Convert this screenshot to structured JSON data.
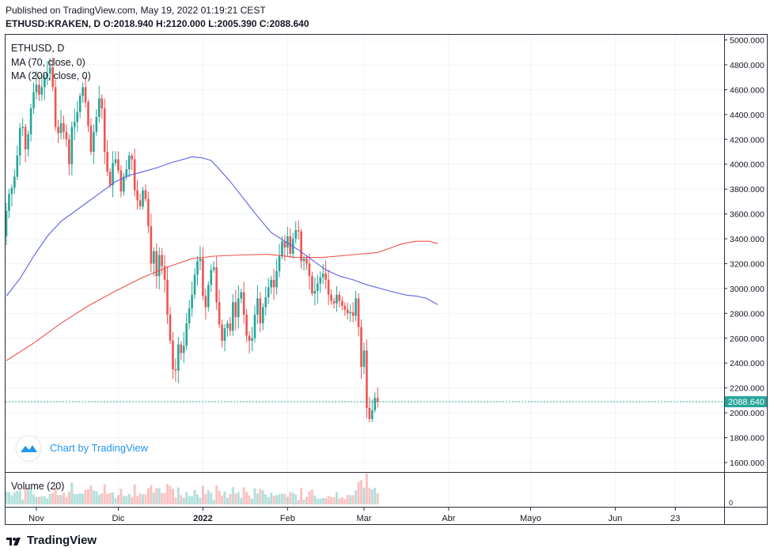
{
  "header": {
    "published_line": "Published on TradingView.com, May 19, 2022 01:19:21 CEST",
    "ohlc_line": "ETHUSD:KRAKEN, D  O:2018.940 H:2120.000 L:2005.390 C:2088.640"
  },
  "legend": {
    "symbol": "ETHUSD, D",
    "ma70": "MA (70, close, 0)",
    "ma200": "MA (200, close, 0)"
  },
  "watermark": {
    "text": "Chart by TradingView"
  },
  "volume_pane": {
    "label": "Volume (20)",
    "axis_label": "0"
  },
  "footer": {
    "brand": "TradingView"
  },
  "colors": {
    "up": "#26a69a",
    "down": "#ef5350",
    "ma70": "#5b5fe0",
    "ma200": "#ef5350",
    "last_price_bg": "#26a69a"
  },
  "chart_data": {
    "type": "candlestick",
    "symbol": "ETHUSD:KRAKEN",
    "interval": "D",
    "ylim": [
      1500,
      5050
    ],
    "y_ticks": [
      "5000.000",
      "4800.000",
      "4600.000",
      "4400.000",
      "4200.000",
      "4000.000",
      "3800.000",
      "3600.000",
      "3400.000",
      "3200.000",
      "3000.000",
      "2800.000",
      "2600.000",
      "2400.000",
      "2200.000",
      "2000.000",
      "1800.000",
      "1600.000"
    ],
    "x_ticks": [
      {
        "label": "Nov",
        "day": 11,
        "bold": false
      },
      {
        "label": "Dic",
        "day": 41,
        "bold": false
      },
      {
        "label": "2022",
        "day": 72,
        "bold": true
      },
      {
        "label": "Feb",
        "day": 103,
        "bold": false
      },
      {
        "label": "Mar",
        "day": 131,
        "bold": false
      },
      {
        "label": "Abr",
        "day": 162,
        "bold": false
      },
      {
        "label": "Mayo",
        "day": 192,
        "bold": false
      },
      {
        "label": "Jun",
        "day": 223,
        "bold": false
      },
      {
        "label": "23",
        "day": 245,
        "bold": false
      }
    ],
    "last_price": "2088.640",
    "last_price_value": 2088.64,
    "close": [
      3625,
      3760,
      3810,
      3900,
      4070,
      4290,
      4300,
      4120,
      4240,
      4450,
      4580,
      4640,
      4560,
      4620,
      4700,
      4730,
      4780,
      4620,
      4300,
      4250,
      4330,
      4260,
      4200,
      4000,
      4300,
      4340,
      4420,
      4550,
      4620,
      4500,
      4310,
      4100,
      4260,
      4380,
      4530,
      4450,
      4100,
      3940,
      3830,
      4010,
      4040,
      3950,
      3780,
      3900,
      3960,
      4070,
      4040,
      3790,
      3710,
      3660,
      3790,
      3720,
      3500,
      3200,
      3300,
      3100,
      3270,
      3180,
      3070,
      2790,
      2580,
      2350,
      2340,
      2550,
      2480,
      2540,
      2720,
      2840,
      2950,
      3110,
      3220,
      3240,
      2940,
      2850,
      3030,
      3150,
      3170,
      2890,
      2710,
      2580,
      2680,
      2720,
      2660,
      2890,
      2770,
      2920,
      2970,
      2790,
      2620,
      2580,
      2600,
      2790,
      2920,
      2720,
      2850,
      2930,
      3010,
      3070,
      3010,
      3140,
      3260,
      3380,
      3330,
      3420,
      3280,
      3400,
      3470,
      3460,
      3220,
      3240,
      3200,
      3100,
      2960,
      2980,
      3040,
      3090,
      3120,
      3070,
      2950,
      2900,
      2880,
      2950,
      2900,
      2860,
      2830,
      2800,
      2810,
      2780,
      2920,
      2690,
      2370,
      2500,
      2040,
      1950,
      2020,
      2120,
      2088.64
    ],
    "ma70": [
      {
        "day": 0,
        "v": 2940
      },
      {
        "day": 5,
        "v": 3080
      },
      {
        "day": 10,
        "v": 3260
      },
      {
        "day": 15,
        "v": 3420
      },
      {
        "day": 20,
        "v": 3540
      },
      {
        "day": 25,
        "v": 3620
      },
      {
        "day": 30,
        "v": 3700
      },
      {
        "day": 35,
        "v": 3780
      },
      {
        "day": 40,
        "v": 3860
      },
      {
        "day": 45,
        "v": 3910
      },
      {
        "day": 50,
        "v": 3940
      },
      {
        "day": 55,
        "v": 3970
      },
      {
        "day": 60,
        "v": 4010
      },
      {
        "day": 65,
        "v": 4040
      },
      {
        "day": 68,
        "v": 4060
      },
      {
        "day": 72,
        "v": 4050
      },
      {
        "day": 75,
        "v": 4030
      },
      {
        "day": 78,
        "v": 3960
      },
      {
        "day": 82,
        "v": 3860
      },
      {
        "day": 87,
        "v": 3720
      },
      {
        "day": 92,
        "v": 3580
      },
      {
        "day": 97,
        "v": 3450
      },
      {
        "day": 102,
        "v": 3380
      },
      {
        "day": 107,
        "v": 3310
      },
      {
        "day": 112,
        "v": 3230
      },
      {
        "day": 117,
        "v": 3150
      },
      {
        "day": 122,
        "v": 3100
      },
      {
        "day": 127,
        "v": 3070
      },
      {
        "day": 132,
        "v": 3030
      },
      {
        "day": 137,
        "v": 3000
      },
      {
        "day": 142,
        "v": 2970
      },
      {
        "day": 147,
        "v": 2945
      },
      {
        "day": 150,
        "v": 2940
      },
      {
        "day": 154,
        "v": 2920
      },
      {
        "day": 158,
        "v": 2870
      }
    ],
    "ma200": [
      {
        "day": 0,
        "v": 2420
      },
      {
        "day": 10,
        "v": 2560
      },
      {
        "day": 20,
        "v": 2720
      },
      {
        "day": 30,
        "v": 2860
      },
      {
        "day": 40,
        "v": 2980
      },
      {
        "day": 50,
        "v": 3090
      },
      {
        "day": 60,
        "v": 3180
      },
      {
        "day": 68,
        "v": 3240
      },
      {
        "day": 76,
        "v": 3260
      },
      {
        "day": 86,
        "v": 3270
      },
      {
        "day": 96,
        "v": 3275
      },
      {
        "day": 106,
        "v": 3250
      },
      {
        "day": 116,
        "v": 3250
      },
      {
        "day": 126,
        "v": 3270
      },
      {
        "day": 136,
        "v": 3290
      },
      {
        "day": 140,
        "v": 3320
      },
      {
        "day": 145,
        "v": 3360
      },
      {
        "day": 150,
        "v": 3380
      },
      {
        "day": 155,
        "v": 3380
      },
      {
        "day": 158,
        "v": 3360
      }
    ]
  }
}
